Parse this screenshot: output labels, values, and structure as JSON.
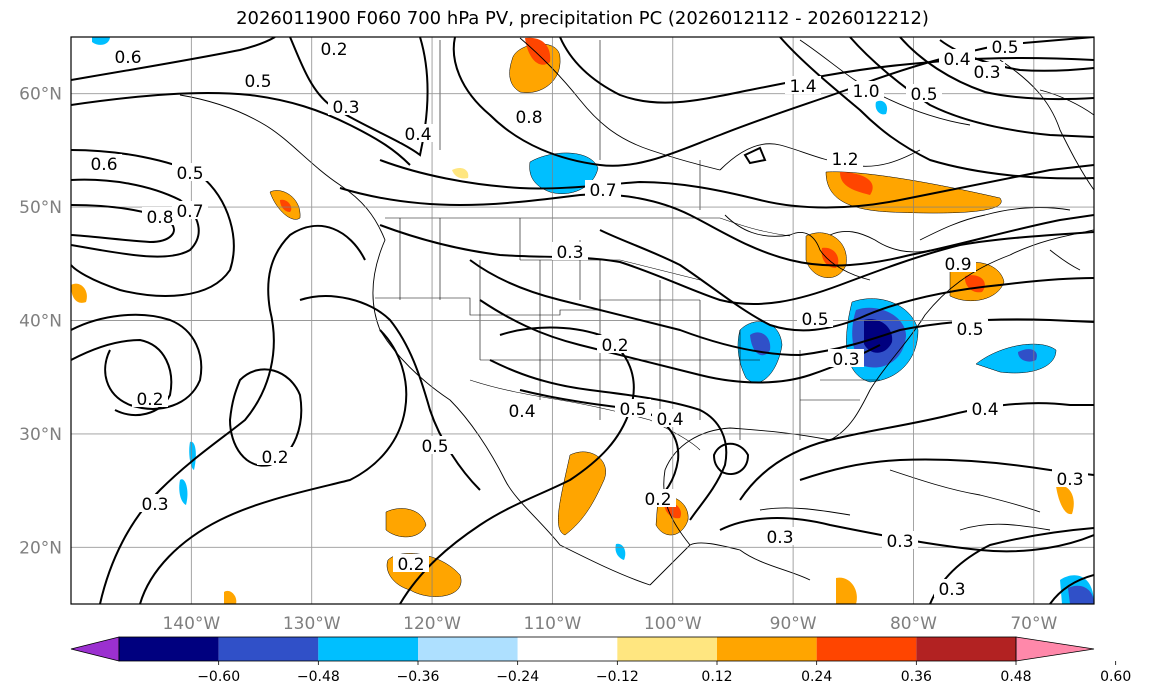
{
  "title": "2026011900 F060 700 hPa PV, precipitation PC (2026012112 - 2026012212)",
  "map": {
    "lon_range": [
      -150,
      -65
    ],
    "lat_range": [
      15,
      65
    ],
    "lat_labels": [
      "60°N",
      "50°N",
      "40°N",
      "30°N",
      "20°N"
    ],
    "lon_labels": [
      "140°W",
      "130°W",
      "120°W",
      "110°W",
      "100°W",
      "90°W",
      "80°W",
      "70°W"
    ],
    "contour_labels": [
      "0.6",
      "0.2",
      "0.5",
      "0.3",
      "0.4",
      "0.8",
      "1.4",
      "1.0",
      "0.5",
      "0.4",
      "0.3",
      "0.5",
      "0.6",
      "0.5",
      "0.8",
      "0.7",
      "0.7",
      "1.2",
      "0.3",
      "0.9",
      "0.5",
      "0.2",
      "0.3",
      "0.5",
      "0.2",
      "0.5",
      "0.2",
      "0.4",
      "0.5",
      "0.4",
      "0.4",
      "0.3",
      "0.3",
      "0.2",
      "0.2",
      "0.3",
      "0.3",
      "0.3"
    ]
  },
  "colorbar": {
    "tick_labels": [
      "−0.60",
      "−0.48",
      "−0.36",
      "−0.24",
      "−0.12",
      "0.12",
      "0.24",
      "0.36",
      "0.48",
      "0.60"
    ],
    "colors": [
      "#9b30d0",
      "#00007f",
      "#3050c8",
      "#00bfff",
      "#aee0ff",
      "#ffffff",
      "#ffe680",
      "#ffa500",
      "#ff4500",
      "#b22222",
      "#ff88aa"
    ]
  }
}
